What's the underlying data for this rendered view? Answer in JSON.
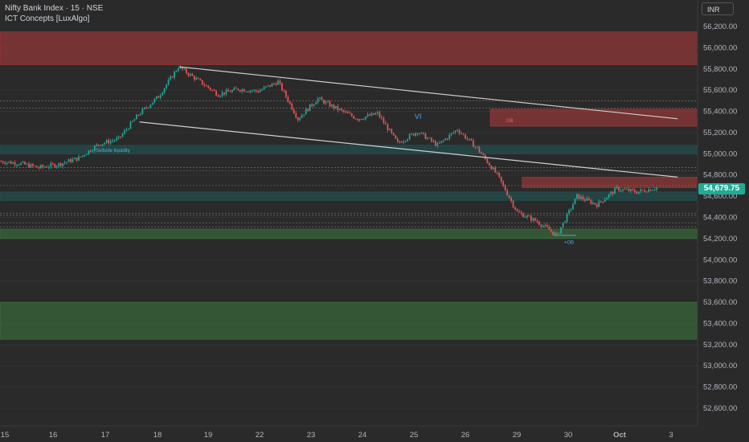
{
  "header": {
    "symbol_title": "Nifty Bank Index · 15 · NSE",
    "indicator_name": "ICT Concepts [LuxAlgo]"
  },
  "currency": "INR",
  "last_price_label": "54,679.75",
  "annotations": {
    "vi_label": "VI",
    "ob_label": "OB",
    "sellside_label": "Sellside liquidity",
    "bottom_ob_label": "+OB"
  },
  "colors": {
    "background": "#2a2a2a",
    "bull": "#26a69a",
    "bear": "#ef5350",
    "bearish_zone": "#b23a3a",
    "bullish_zone": "#3e7a3e",
    "liquidity_zone": "#1f5a5a",
    "trendline": "#cfcfcf",
    "price_tag": "#22ab94",
    "axis_text": "#b2b5be"
  },
  "chart_data": {
    "type": "candlestick",
    "symbol": "Nifty Bank Index",
    "timeframe": "15",
    "exchange": "NSE",
    "y_ticks": [
      "56,200.00",
      "56,000.00",
      "55,800.00",
      "55,600.00",
      "55,400.00",
      "55,200.00",
      "55,000.00",
      "54,800.00",
      "54,600.00",
      "54,400.00",
      "54,200.00",
      "54,000.00",
      "53,800.00",
      "53,600.00",
      "53,400.00",
      "53,200.00",
      "53,000.00",
      "52,800.00",
      "52,600.00"
    ],
    "x_ticks": [
      "15",
      "16",
      "17",
      "18",
      "19",
      "22",
      "23",
      "24",
      "25",
      "26",
      "29",
      "30",
      "Oct",
      "3"
    ],
    "ylim": [
      52500,
      56300
    ],
    "last_price": 54679.75,
    "path": [
      [
        0,
        54930
      ],
      [
        1,
        54910
      ],
      [
        2,
        54870
      ],
      [
        3,
        54900
      ],
      [
        4,
        54960
      ],
      [
        5,
        55090
      ],
      [
        6,
        55140
      ],
      [
        7,
        55370
      ],
      [
        8,
        55540
      ],
      [
        9,
        55820
      ],
      [
        10,
        55690
      ],
      [
        11,
        55560
      ],
      [
        12,
        55610
      ],
      [
        13,
        55590
      ],
      [
        14,
        55680
      ],
      [
        15,
        55330
      ],
      [
        16,
        55520
      ],
      [
        17,
        55420
      ],
      [
        18,
        55330
      ],
      [
        19,
        55380
      ],
      [
        20,
        55100
      ],
      [
        21,
        55210
      ],
      [
        22,
        55080
      ],
      [
        23,
        55230
      ],
      [
        24,
        55050
      ],
      [
        25,
        54800
      ],
      [
        26,
        54450
      ],
      [
        27,
        54360
      ],
      [
        28,
        54230
      ],
      [
        29,
        54600
      ],
      [
        30,
        54520
      ],
      [
        31,
        54670
      ],
      [
        32,
        54640
      ],
      [
        33,
        54680
      ]
    ],
    "zones": [
      {
        "kind": "bearish",
        "low": 55840,
        "high": 56150
      },
      {
        "kind": "bearish",
        "low": 55260,
        "high": 55420
      },
      {
        "kind": "bearish",
        "low": 54680,
        "high": 54780
      },
      {
        "kind": "liquidity",
        "low": 55000,
        "high": 55080
      },
      {
        "kind": "liquidity",
        "low": 54560,
        "high": 54640
      },
      {
        "kind": "bullish",
        "low": 54200,
        "high": 54290
      },
      {
        "kind": "bullish",
        "low": 53250,
        "high": 53600
      }
    ],
    "trendlines": [
      {
        "from": [
          9,
          55820
        ],
        "to": [
          34,
          55330
        ]
      },
      {
        "from": [
          7,
          55300
        ],
        "to": [
          34,
          54780
        ]
      }
    ],
    "levels": [
      55500,
      55430,
      54870,
      54840,
      54700,
      54440,
      54420,
      54350,
      54310
    ]
  }
}
